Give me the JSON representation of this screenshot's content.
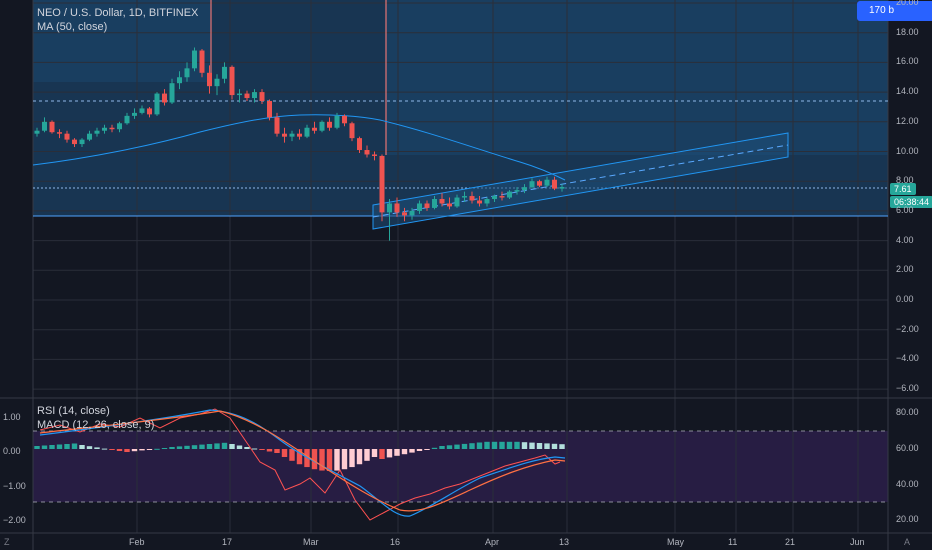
{
  "symbol_legend": "NEO / U.S. Dollar, 1D, BITFINEX",
  "ma_legend": "MA (50, close)",
  "rsi_legend": "RSI (14, close)",
  "macd_legend": "MACD (12, 26, close, 9)",
  "current_price": "7.61",
  "countdown": "06:38:44",
  "badge_text": "170 b",
  "corner_left": "Z",
  "corner_right": "A",
  "colors": {
    "up": "#26a69a",
    "down": "#ef5350",
    "ma": "#2196f3",
    "bg": "#131722",
    "rect": "#1e4f7a"
  },
  "price_axis": [
    "20.00",
    "18.00",
    "16.00",
    "14.00",
    "12.00",
    "10.00",
    "8.00",
    "6.00",
    "4.00",
    "2.00",
    "0.00",
    "−2.00",
    "−4.00",
    "−6.00"
  ],
  "rsi_axis": [
    "80.00",
    "60.00",
    "40.00",
    "20.00"
  ],
  "macd_axis": [
    "1.00",
    "0.00",
    "−1.00",
    "−2.00"
  ],
  "time_axis": [
    "Feb",
    "17",
    "Mar",
    "16",
    "Apr",
    "13",
    "May",
    "11",
    "21",
    "Jun"
  ],
  "chart_data": {
    "type": "candlestick",
    "title": "NEO / U.S. Dollar, 1D, BITFINEX",
    "ylim": [
      -6,
      20
    ],
    "candles": [
      [
        11.2,
        11.6,
        11.0,
        11.4
      ],
      [
        11.4,
        12.3,
        11.3,
        12.0
      ],
      [
        12.0,
        12.1,
        11.2,
        11.3
      ],
      [
        11.3,
        11.5,
        10.9,
        11.2
      ],
      [
        11.2,
        11.4,
        10.6,
        10.8
      ],
      [
        10.8,
        10.9,
        10.3,
        10.5
      ],
      [
        10.5,
        10.9,
        10.3,
        10.8
      ],
      [
        10.8,
        11.4,
        10.7,
        11.2
      ],
      [
        11.2,
        11.6,
        11.0,
        11.4
      ],
      [
        11.4,
        11.8,
        11.2,
        11.6
      ],
      [
        11.6,
        11.8,
        11.3,
        11.5
      ],
      [
        11.5,
        12.0,
        11.3,
        11.9
      ],
      [
        11.9,
        12.6,
        11.8,
        12.4
      ],
      [
        12.4,
        12.9,
        12.2,
        12.6
      ],
      [
        12.6,
        13.1,
        12.5,
        12.9
      ],
      [
        12.9,
        13.0,
        12.3,
        12.5
      ],
      [
        12.5,
        14.0,
        12.4,
        13.9
      ],
      [
        13.9,
        14.2,
        13.1,
        13.3
      ],
      [
        13.3,
        14.9,
        13.2,
        14.6
      ],
      [
        14.6,
        15.4,
        14.2,
        15.0
      ],
      [
        15.0,
        16.0,
        14.7,
        15.6
      ],
      [
        15.6,
        17.0,
        15.4,
        16.8
      ],
      [
        16.8,
        16.9,
        15.0,
        15.3
      ],
      [
        15.3,
        15.8,
        13.9,
        14.4
      ],
      [
        14.4,
        15.2,
        13.8,
        14.9
      ],
      [
        14.9,
        16.0,
        14.6,
        15.7
      ],
      [
        15.7,
        15.8,
        13.5,
        13.8
      ],
      [
        13.8,
        14.2,
        13.3,
        13.9
      ],
      [
        13.9,
        14.1,
        13.4,
        13.6
      ],
      [
        13.6,
        14.2,
        13.3,
        14.0
      ],
      [
        14.0,
        14.2,
        13.2,
        13.4
      ],
      [
        13.4,
        13.5,
        12.1,
        12.3
      ],
      [
        12.3,
        12.6,
        11.0,
        11.2
      ],
      [
        11.2,
        11.6,
        10.6,
        11.0
      ],
      [
        11.0,
        11.4,
        10.7,
        11.2
      ],
      [
        11.2,
        11.5,
        10.8,
        11.0
      ],
      [
        11.0,
        11.8,
        10.9,
        11.6
      ],
      [
        11.6,
        12.0,
        11.2,
        11.4
      ],
      [
        11.4,
        12.1,
        11.3,
        12.0
      ],
      [
        12.0,
        12.3,
        11.4,
        11.6
      ],
      [
        11.6,
        12.6,
        11.5,
        12.4
      ],
      [
        12.4,
        12.5,
        11.7,
        11.9
      ],
      [
        11.9,
        12.0,
        10.7,
        10.9
      ],
      [
        10.9,
        11.0,
        9.9,
        10.1
      ],
      [
        10.1,
        10.4,
        9.6,
        9.8
      ],
      [
        9.8,
        10.0,
        9.4,
        9.7
      ],
      [
        9.7,
        9.8,
        5.3,
        5.9
      ],
      [
        5.9,
        6.8,
        4.0,
        6.5
      ],
      [
        6.5,
        6.9,
        5.6,
        5.9
      ],
      [
        5.9,
        6.2,
        5.3,
        5.7
      ],
      [
        5.7,
        6.2,
        5.4,
        6.0
      ],
      [
        6.0,
        6.7,
        5.8,
        6.5
      ],
      [
        6.5,
        6.7,
        6.0,
        6.2
      ],
      [
        6.2,
        7.0,
        6.1,
        6.8
      ],
      [
        6.8,
        7.2,
        6.3,
        6.5
      ],
      [
        6.5,
        6.9,
        6.1,
        6.3
      ],
      [
        6.3,
        7.1,
        6.2,
        6.9
      ],
      [
        6.9,
        7.3,
        6.6,
        7.0
      ],
      [
        7.0,
        7.3,
        6.5,
        6.7
      ],
      [
        6.7,
        7.0,
        6.3,
        6.5
      ],
      [
        6.5,
        6.9,
        6.3,
        6.8
      ],
      [
        6.8,
        7.1,
        6.6,
        7.0
      ],
      [
        7.0,
        7.3,
        6.7,
        6.9
      ],
      [
        6.9,
        7.4,
        6.8,
        7.3
      ],
      [
        7.3,
        7.6,
        7.1,
        7.4
      ],
      [
        7.4,
        7.8,
        7.2,
        7.6
      ],
      [
        7.6,
        8.2,
        7.5,
        8.0
      ],
      [
        8.0,
        8.1,
        7.6,
        7.7
      ],
      [
        7.7,
        8.3,
        7.6,
        8.1
      ],
      [
        8.1,
        8.3,
        7.4,
        7.5
      ],
      [
        7.5,
        7.8,
        7.3,
        7.61
      ]
    ]
  }
}
